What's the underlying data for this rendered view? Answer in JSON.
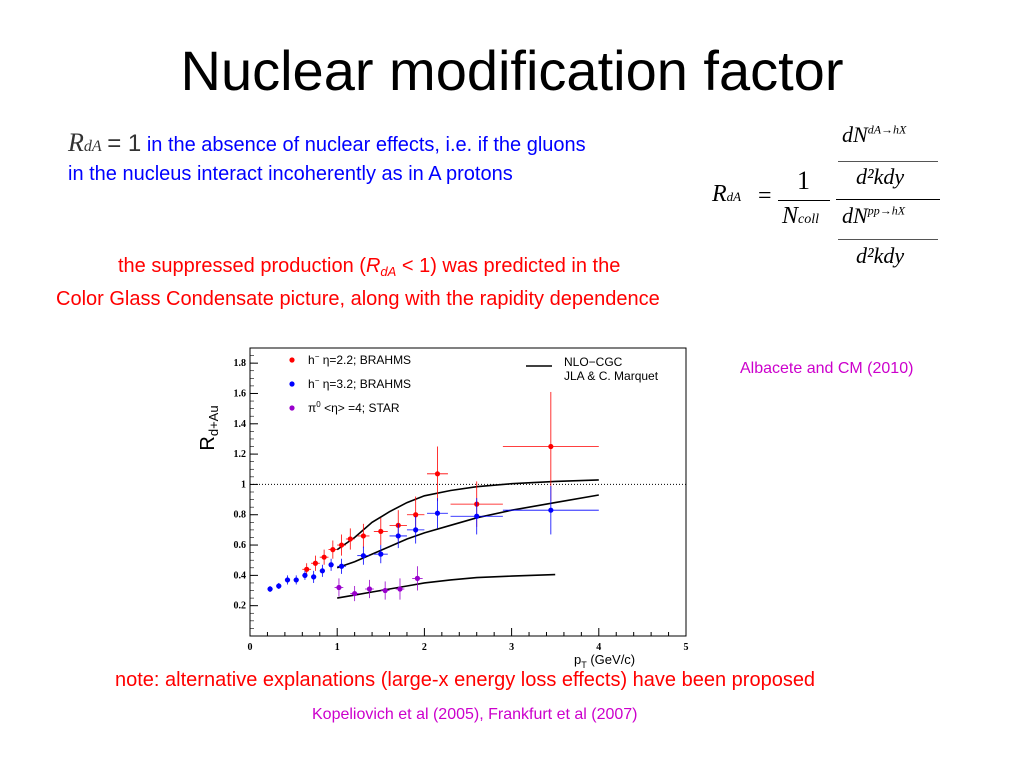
{
  "title": "Nuclear modification factor",
  "intro": {
    "rda_symbol": "R",
    "rda_sub": "dA",
    "rda_eq": "= 1",
    "line1": "in the absence of nuclear effects, i.e. if the gluons",
    "line2": "in the nucleus interact incoherently as in A protons"
  },
  "formula": {
    "lhs_R": "R",
    "lhs_sub": "dA",
    "equals": "=",
    "one": "1",
    "ncoll_N": "N",
    "ncoll_sub": "coll",
    "num_num": "dN",
    "num_num_sup": "dA→hX",
    "num_den": "d²kdy",
    "den_num": "dN",
    "den_num_sup": "pp→hX",
    "den_den": "d²kdy"
  },
  "statement": {
    "l1_a": "the suppressed production (",
    "l1_R": "R",
    "l1_sub": "dA",
    "l1_b": " < 1) was predicted in the",
    "line2": "Color Glass Condensate picture, along with the rapidity dependence"
  },
  "citation_top": "Albacete and CM (2010)",
  "note": "note: alternative explanations (large-x energy loss effects) have been proposed",
  "citation_bottom": "Kopeliovich et al (2005), Frankfurt et al (2007)",
  "colors": {
    "red": "#ff0000",
    "blue": "#0000ff",
    "purple": "#9900cc",
    "cite": "#cc00cc"
  },
  "chart_data": {
    "type": "scatter",
    "ylabel": "R",
    "ylabel_sub": "d+Au",
    "xlabel": "p",
    "xlabel_sub": "T",
    "xlabel_unit": " (GeV/c)",
    "xlim": [
      0,
      5
    ],
    "ylim": [
      0,
      1.9
    ],
    "xticks": [
      "0",
      "1",
      "2",
      "3",
      "4",
      "5"
    ],
    "yticks": [
      "0.2",
      "0.4",
      "0.6",
      "0.8",
      "1",
      "1.2",
      "1.4",
      "1.6",
      "1.8"
    ],
    "reference_line": 1,
    "legend": [
      {
        "pre": "h",
        "sup": "−",
        "text": " η=2.2; BRAHMS",
        "color": "#ff0000"
      },
      {
        "pre": "h",
        "sup": "−",
        "text": " η=3.2; BRAHMS",
        "color": "#0000ff"
      },
      {
        "pre": "π",
        "sup": "0",
        "text": "  <η> =4; STAR",
        "color": "#9900cc"
      }
    ],
    "curve_legend": [
      "NLO−CGC",
      "JLA & C. Marquet"
    ],
    "series": [
      {
        "name": "h− η=2.2; BRAHMS",
        "color": "#ff0000",
        "points": [
          [
            0.65,
            0.44,
            0.05,
            0.04
          ],
          [
            0.75,
            0.48,
            0.05,
            0.05
          ],
          [
            0.85,
            0.52,
            0.05,
            0.05
          ],
          [
            0.95,
            0.57,
            0.05,
            0.06
          ],
          [
            1.05,
            0.6,
            0.05,
            0.07
          ],
          [
            1.15,
            0.64,
            0.05,
            0.07
          ],
          [
            1.3,
            0.66,
            0.07,
            0.08
          ],
          [
            1.5,
            0.69,
            0.08,
            0.09
          ],
          [
            1.7,
            0.73,
            0.1,
            0.1
          ],
          [
            1.9,
            0.8,
            0.1,
            0.12
          ],
          [
            2.15,
            1.07,
            0.12,
            0.18
          ],
          [
            2.6,
            0.87,
            0.3,
            0.15
          ],
          [
            3.45,
            1.25,
            0.55,
            0.36
          ]
        ]
      },
      {
        "name": "h− η=3.2; BRAHMS",
        "color": "#0000ff",
        "points": [
          [
            0.23,
            0.31,
            0.03,
            0.02
          ],
          [
            0.33,
            0.33,
            0.03,
            0.02
          ],
          [
            0.43,
            0.37,
            0.03,
            0.03
          ],
          [
            0.53,
            0.37,
            0.03,
            0.03
          ],
          [
            0.63,
            0.4,
            0.03,
            0.03
          ],
          [
            0.73,
            0.39,
            0.03,
            0.04
          ],
          [
            0.83,
            0.43,
            0.03,
            0.04
          ],
          [
            0.93,
            0.47,
            0.03,
            0.04
          ],
          [
            1.05,
            0.46,
            0.05,
            0.05
          ],
          [
            1.3,
            0.53,
            0.07,
            0.06
          ],
          [
            1.5,
            0.54,
            0.08,
            0.06
          ],
          [
            1.7,
            0.66,
            0.1,
            0.08
          ],
          [
            1.9,
            0.7,
            0.1,
            0.09
          ],
          [
            2.15,
            0.81,
            0.12,
            0.1
          ],
          [
            2.6,
            0.79,
            0.3,
            0.12
          ],
          [
            3.45,
            0.83,
            0.55,
            0.16
          ]
        ]
      },
      {
        "name": "π0 <η> =4; STAR",
        "color": "#9900cc",
        "points": [
          [
            1.02,
            0.32,
            0.05,
            0.06
          ],
          [
            1.2,
            0.28,
            0.05,
            0.05
          ],
          [
            1.37,
            0.31,
            0.05,
            0.06
          ],
          [
            1.55,
            0.3,
            0.05,
            0.06
          ],
          [
            1.72,
            0.31,
            0.05,
            0.07
          ],
          [
            1.92,
            0.38,
            0.06,
            0.08
          ]
        ]
      }
    ],
    "curves": [
      {
        "points": [
          [
            1,
            0.57
          ],
          [
            1.2,
            0.65
          ],
          [
            1.4,
            0.75
          ],
          [
            1.6,
            0.82
          ],
          [
            1.8,
            0.88
          ],
          [
            2.0,
            0.925
          ],
          [
            2.3,
            0.96
          ],
          [
            2.6,
            0.985
          ],
          [
            3.0,
            1.005
          ],
          [
            3.5,
            1.02
          ],
          [
            4.0,
            1.03
          ]
        ]
      },
      {
        "points": [
          [
            1,
            0.45
          ],
          [
            1.2,
            0.49
          ],
          [
            1.4,
            0.54
          ],
          [
            1.6,
            0.59
          ],
          [
            1.8,
            0.64
          ],
          [
            2.0,
            0.68
          ],
          [
            2.3,
            0.73
          ],
          [
            2.6,
            0.78
          ],
          [
            3.0,
            0.83
          ],
          [
            3.5,
            0.88
          ],
          [
            4.0,
            0.93
          ]
        ]
      },
      {
        "points": [
          [
            1,
            0.25
          ],
          [
            1.2,
            0.27
          ],
          [
            1.4,
            0.29
          ],
          [
            1.6,
            0.31
          ],
          [
            1.8,
            0.33
          ],
          [
            2.0,
            0.35
          ],
          [
            2.3,
            0.37
          ],
          [
            2.6,
            0.385
          ],
          [
            3.0,
            0.395
          ],
          [
            3.5,
            0.405
          ]
        ]
      }
    ]
  }
}
